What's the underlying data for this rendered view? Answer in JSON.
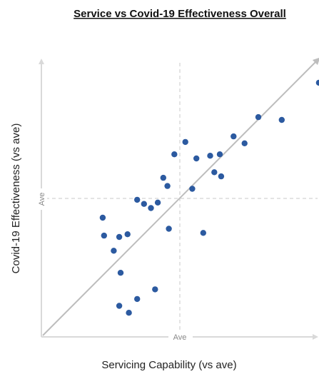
{
  "chart_data": {
    "type": "scatter",
    "title": "Service vs Covid-19 Effectiveness Overall",
    "xlabel": "Servicing Capability (vs ave)",
    "ylabel": "Covid-19 Effectiveness (vs ave)",
    "x_mid_label": "Ave",
    "y_mid_label": "Ave",
    "xlim": [
      -1,
      1
    ],
    "ylim": [
      -1,
      1
    ],
    "grid": false,
    "trendline": true,
    "colors": {
      "point": "#2c5aa0",
      "trend": "#bdbdbd",
      "axis": "#d9d9d9",
      "ave_line": "#c8c8c8"
    },
    "points": [
      [
        -0.56,
        -0.14
      ],
      [
        -0.55,
        -0.27
      ],
      [
        -0.48,
        -0.38
      ],
      [
        -0.44,
        -0.28
      ],
      [
        -0.43,
        -0.54
      ],
      [
        -0.44,
        -0.78
      ],
      [
        -0.37,
        -0.83
      ],
      [
        -0.38,
        -0.26
      ],
      [
        -0.31,
        -0.73
      ],
      [
        -0.31,
        -0.01
      ],
      [
        -0.26,
        -0.04
      ],
      [
        -0.21,
        -0.07
      ],
      [
        -0.18,
        -0.66
      ],
      [
        -0.16,
        -0.03
      ],
      [
        -0.12,
        0.15
      ],
      [
        -0.09,
        0.09
      ],
      [
        -0.08,
        -0.22
      ],
      [
        -0.04,
        0.32
      ],
      [
        0.04,
        0.41
      ],
      [
        0.09,
        0.07
      ],
      [
        0.12,
        0.29
      ],
      [
        0.17,
        -0.25
      ],
      [
        0.22,
        0.31
      ],
      [
        0.25,
        0.19
      ],
      [
        0.3,
        0.16
      ],
      [
        0.29,
        0.32
      ],
      [
        0.39,
        0.45
      ],
      [
        0.47,
        0.4
      ],
      [
        0.57,
        0.59
      ],
      [
        0.74,
        0.57
      ],
      [
        1.01,
        0.84
      ]
    ]
  }
}
